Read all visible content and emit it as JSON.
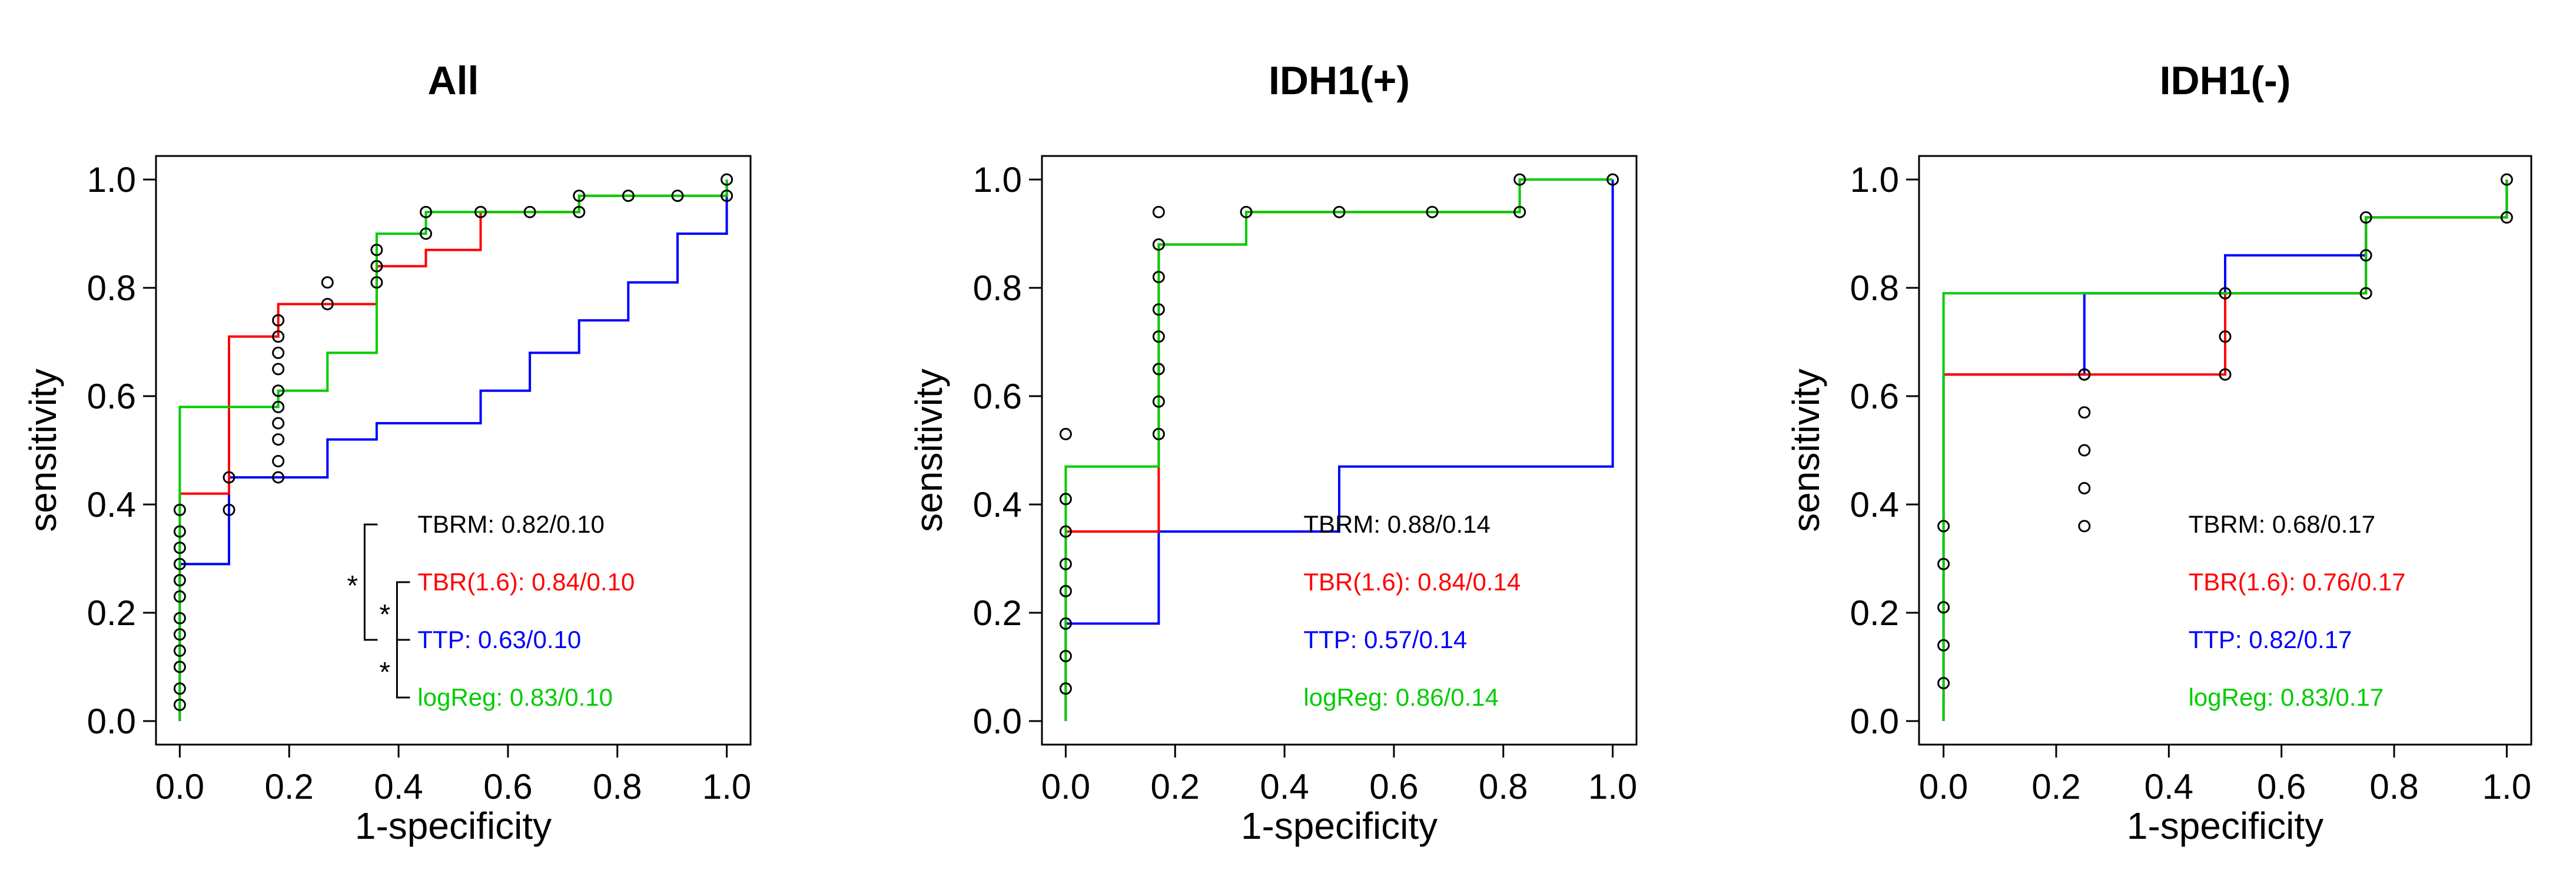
{
  "figure": {
    "background": "#ffffff"
  },
  "colors": {
    "TBRM": "#000000",
    "TBR(1.6)": "#ff0000",
    "TTP": "#0000ff",
    "logReg": "#00cc00",
    "axis": "#000000"
  },
  "chart_data": [
    {
      "type": "line",
      "title": "All",
      "xlabel": "1-specificity",
      "ylabel": "sensitivity",
      "xlim": [
        0,
        1
      ],
      "ylim": [
        0,
        1
      ],
      "xticks": [
        "0.0",
        "0.2",
        "0.4",
        "0.6",
        "0.8",
        "1.0"
      ],
      "yticks": [
        "0.0",
        "0.2",
        "0.4",
        "0.6",
        "0.8",
        "1.0"
      ],
      "grid": false,
      "series": [
        {
          "name": "TTP",
          "color": "#0000ff",
          "x": [
            0,
            0,
            0.09,
            0.09,
            0.27,
            0.27,
            0.36,
            0.36,
            0.55,
            0.55,
            0.64,
            0.64,
            0.73,
            0.73,
            0.82,
            0.82,
            0.91,
            0.91,
            1.0,
            1.0
          ],
          "y": [
            0,
            0.29,
            0.29,
            0.45,
            0.45,
            0.52,
            0.52,
            0.55,
            0.55,
            0.61,
            0.61,
            0.68,
            0.68,
            0.74,
            0.74,
            0.81,
            0.81,
            0.9,
            0.9,
            1.0
          ]
        },
        {
          "name": "TBR(1.6)",
          "color": "#ff0000",
          "x": [
            0,
            0,
            0.09,
            0.09,
            0.18,
            0.18,
            0.36,
            0.36,
            0.45,
            0.45,
            0.55,
            0.55,
            0.73,
            0.73,
            1.0,
            1.0
          ],
          "y": [
            0,
            0.42,
            0.42,
            0.71,
            0.71,
            0.77,
            0.77,
            0.84,
            0.84,
            0.87,
            0.87,
            0.94,
            0.94,
            0.97,
            0.97,
            1.0
          ]
        },
        {
          "name": "logReg",
          "color": "#00cc00",
          "x": [
            0,
            0,
            0.09,
            0.09,
            0.18,
            0.18,
            0.27,
            0.27,
            0.36,
            0.36,
            0.45,
            0.45,
            0.73,
            0.73,
            1.0,
            1.0
          ],
          "y": [
            0,
            0.58,
            0.58,
            0.58,
            0.58,
            0.61,
            0.61,
            0.68,
            0.68,
            0.9,
            0.9,
            0.94,
            0.94,
            0.97,
            0.97,
            1.0
          ]
        }
      ],
      "points": {
        "name": "TBRM",
        "x": [
          0,
          0,
          0,
          0,
          0,
          0,
          0,
          0,
          0,
          0,
          0,
          0,
          0.09,
          0.09,
          0.18,
          0.18,
          0.18,
          0.18,
          0.18,
          0.18,
          0.18,
          0.18,
          0.18,
          0.18,
          0.27,
          0.27,
          0.36,
          0.36,
          0.36,
          0.45,
          0.45,
          0.55,
          0.64,
          0.73,
          0.73,
          0.82,
          0.91,
          1.0,
          1.0
        ],
        "y": [
          0.03,
          0.06,
          0.1,
          0.13,
          0.16,
          0.19,
          0.23,
          0.26,
          0.29,
          0.32,
          0.35,
          0.39,
          0.39,
          0.45,
          0.45,
          0.48,
          0.52,
          0.55,
          0.58,
          0.61,
          0.65,
          0.68,
          0.71,
          0.74,
          0.77,
          0.81,
          0.81,
          0.84,
          0.87,
          0.9,
          0.94,
          0.94,
          0.94,
          0.94,
          0.97,
          0.97,
          0.97,
          0.97,
          1.0
        ]
      },
      "legend": {
        "position": "bottom-right",
        "entries": [
          {
            "label": "TBRM: 0.82/0.10",
            "color": "#000000"
          },
          {
            "label": "TBR(1.6): 0.84/0.10",
            "color": "#ff0000"
          },
          {
            "label": "TTP: 0.63/0.10",
            "color": "#0000ff"
          },
          {
            "label": "logReg: 0.83/0.10",
            "color": "#00cc00"
          }
        ]
      },
      "significance": {
        "marker": "*",
        "brackets": [
          {
            "from": "TBRM",
            "to": "TTP"
          },
          {
            "from": "TBR(1.6)",
            "to": "TTP"
          },
          {
            "from": "TTP",
            "to": "logReg"
          }
        ]
      }
    },
    {
      "type": "line",
      "title": "IDH1(+)",
      "xlabel": "1-specificity",
      "ylabel": "sensitivity",
      "xlim": [
        0,
        1
      ],
      "ylim": [
        0,
        1
      ],
      "xticks": [
        "0.0",
        "0.2",
        "0.4",
        "0.6",
        "0.8",
        "1.0"
      ],
      "yticks": [
        "0.0",
        "0.2",
        "0.4",
        "0.6",
        "0.8",
        "1.0"
      ],
      "grid": false,
      "series": [
        {
          "name": "TTP",
          "color": "#0000ff",
          "x": [
            0,
            0,
            0.17,
            0.17,
            0.5,
            0.5,
            1.0,
            1.0
          ],
          "y": [
            0,
            0.18,
            0.18,
            0.35,
            0.35,
            0.47,
            0.47,
            1.0
          ]
        },
        {
          "name": "TBR(1.6)",
          "color": "#ff0000",
          "x": [
            0,
            0,
            0.17,
            0.17,
            0.33,
            0.33,
            0.83,
            0.83,
            1.0
          ],
          "y": [
            0,
            0.35,
            0.35,
            0.88,
            0.88,
            0.94,
            0.94,
            1.0,
            1.0
          ]
        },
        {
          "name": "logReg",
          "color": "#00cc00",
          "x": [
            0,
            0,
            0.17,
            0.17,
            0.33,
            0.33,
            0.83,
            0.83,
            1.0
          ],
          "y": [
            0,
            0.47,
            0.47,
            0.88,
            0.88,
            0.94,
            0.94,
            1.0,
            1.0
          ]
        }
      ],
      "points": {
        "name": "TBRM",
        "x": [
          0,
          0,
          0,
          0,
          0,
          0,
          0,
          0,
          0.17,
          0.17,
          0.17,
          0.17,
          0.17,
          0.17,
          0.17,
          0.17,
          0.33,
          0.5,
          0.67,
          0.83,
          0.83,
          1.0
        ],
        "y": [
          0.06,
          0.12,
          0.18,
          0.24,
          0.29,
          0.35,
          0.41,
          0.53,
          0.53,
          0.59,
          0.65,
          0.71,
          0.76,
          0.82,
          0.88,
          0.94,
          0.94,
          0.94,
          0.94,
          0.94,
          1.0,
          1.0
        ]
      },
      "legend": {
        "position": "bottom-right",
        "entries": [
          {
            "label": "TBRM: 0.88/0.14",
            "color": "#000000"
          },
          {
            "label": "TBR(1.6): 0.84/0.14",
            "color": "#ff0000"
          },
          {
            "label": "TTP: 0.57/0.14",
            "color": "#0000ff"
          },
          {
            "label": "logReg: 0.86/0.14",
            "color": "#00cc00"
          }
        ]
      }
    },
    {
      "type": "line",
      "title": "IDH1(-)",
      "xlabel": "1-specificity",
      "ylabel": "sensitivity",
      "xlim": [
        0,
        1
      ],
      "ylim": [
        0,
        1
      ],
      "xticks": [
        "0.0",
        "0.2",
        "0.4",
        "0.6",
        "0.8",
        "1.0"
      ],
      "yticks": [
        "0.0",
        "0.2",
        "0.4",
        "0.6",
        "0.8",
        "1.0"
      ],
      "grid": false,
      "series": [
        {
          "name": "TTP",
          "color": "#0000ff",
          "x": [
            0,
            0,
            0.25,
            0.25,
            0.5,
            0.5,
            0.75,
            0.75,
            1.0,
            1.0
          ],
          "y": [
            0,
            0.64,
            0.64,
            0.79,
            0.79,
            0.86,
            0.86,
            0.93,
            0.93,
            1.0
          ]
        },
        {
          "name": "TBR(1.6)",
          "color": "#ff0000",
          "x": [
            0,
            0,
            0.25,
            0.25,
            0.5,
            0.5,
            0.75,
            0.75,
            1.0,
            1.0
          ],
          "y": [
            0,
            0.64,
            0.64,
            0.64,
            0.64,
            0.79,
            0.79,
            0.93,
            0.93,
            1.0
          ]
        },
        {
          "name": "logReg",
          "color": "#00cc00",
          "x": [
            0,
            0,
            0.75,
            0.75,
            1.0,
            1.0
          ],
          "y": [
            0,
            0.79,
            0.79,
            0.93,
            0.93,
            1.0
          ]
        }
      ],
      "points": {
        "name": "TBRM",
        "x": [
          0,
          0,
          0,
          0,
          0,
          0.25,
          0.25,
          0.25,
          0.25,
          0.25,
          0.25,
          0.5,
          0.5,
          0.5,
          0.75,
          0.75,
          0.75,
          1.0,
          1.0
        ],
        "y": [
          0.07,
          0.14,
          0.21,
          0.29,
          0.36,
          0.36,
          0.43,
          0.5,
          0.57,
          0.64,
          0.64,
          0.64,
          0.71,
          0.79,
          0.79,
          0.86,
          0.93,
          0.93,
          1.0
        ]
      },
      "legend": {
        "position": "bottom-right",
        "entries": [
          {
            "label": "TBRM: 0.68/0.17",
            "color": "#000000"
          },
          {
            "label": "TBR(1.6): 0.76/0.17",
            "color": "#ff0000"
          },
          {
            "label": "TTP: 0.82/0.17",
            "color": "#0000ff"
          },
          {
            "label": "logReg: 0.83/0.17",
            "color": "#00cc00"
          }
        ]
      }
    }
  ]
}
